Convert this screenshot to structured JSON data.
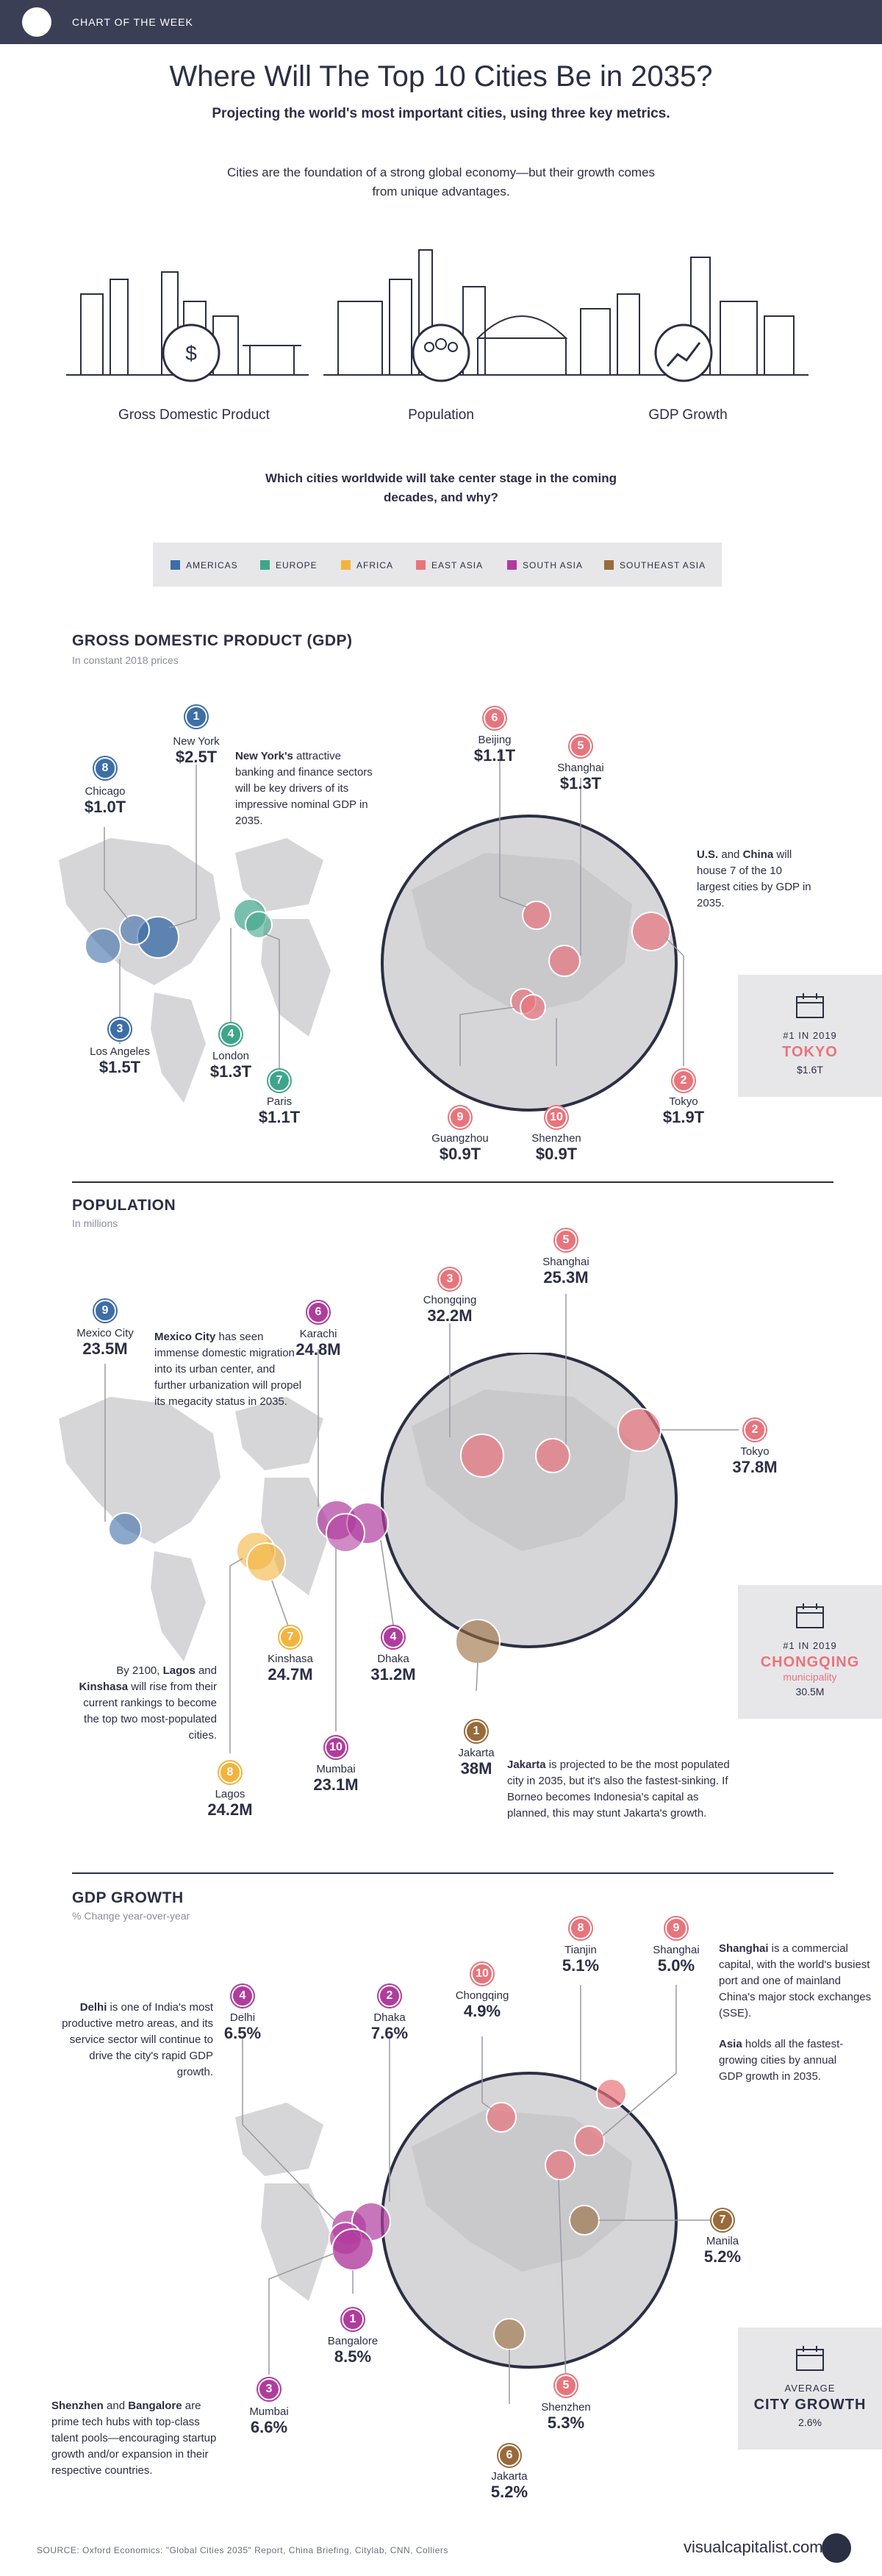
{
  "header": {
    "tag": "CHART OF THE WEEK"
  },
  "title": "Where Will The Top 10 Cities Be in 2035?",
  "subtitle": "Projecting the world's most important cities, using three key metrics.",
  "intro": "Cities are the foundation of a strong global economy—but their growth comes from unique advantages.",
  "metrics": [
    "Gross Domestic Product",
    "Population",
    "GDP Growth"
  ],
  "question": "Which cities worldwide will take center stage in the coming decades, and why?",
  "legend": [
    {
      "label": "AMERICAS",
      "color": "#3d6ea8"
    },
    {
      "label": "EUROPE",
      "color": "#3fa58a"
    },
    {
      "label": "AFRICA",
      "color": "#f3b33d"
    },
    {
      "label": "EAST ASIA",
      "color": "#e8747c"
    },
    {
      "label": "SOUTH ASIA",
      "color": "#b03c9e"
    },
    {
      "label": "SOUTHEAST ASIA",
      "color": "#9a6a3a"
    }
  ],
  "gdp": {
    "title": "GROSS DOMESTIC PRODUCT (GDP)",
    "subtitle": "In constant 2018 prices",
    "note_lead": "New York's",
    "note_rest": " attractive banking and finance sectors will be key drivers of its impressive nominal GDP in 2035.",
    "asia_note_a": "U.S.",
    "asia_note_and": " and ",
    "asia_note_b": "China",
    "asia_note_rest": " will house 7 of the 10 largest cities by GDP in 2035.",
    "box": {
      "year": "#1 IN 2019",
      "city": "TOKYO",
      "value": "$1.6T"
    },
    "cities": [
      {
        "rank": "1",
        "name": "New York",
        "value": "$2.5T",
        "region": "AMERICAS"
      },
      {
        "rank": "2",
        "name": "Tokyo",
        "value": "$1.9T",
        "region": "EAST ASIA"
      },
      {
        "rank": "3",
        "name": "Los Angeles",
        "value": "$1.5T",
        "region": "AMERICAS"
      },
      {
        "rank": "4",
        "name": "London",
        "value": "$1.3T",
        "region": "EUROPE"
      },
      {
        "rank": "5",
        "name": "Shanghai",
        "value": "$1.3T",
        "region": "EAST ASIA"
      },
      {
        "rank": "6",
        "name": "Beijing",
        "value": "$1.1T",
        "region": "EAST ASIA"
      },
      {
        "rank": "7",
        "name": "Paris",
        "value": "$1.1T",
        "region": "EUROPE"
      },
      {
        "rank": "8",
        "name": "Chicago",
        "value": "$1.0T",
        "region": "AMERICAS"
      },
      {
        "rank": "9",
        "name": "Guangzhou",
        "value": "$0.9T",
        "region": "EAST ASIA"
      },
      {
        "rank": "10",
        "name": "Shenzhen",
        "value": "$0.9T",
        "region": "EAST ASIA"
      }
    ]
  },
  "population": {
    "title": "POPULATION",
    "subtitle": "In millions",
    "note_lead": "Mexico City",
    "note_rest": " has seen immense domestic migration into its urban center, and further urbanization will propel its megacity status in 2035.",
    "africa_note_a": "By 2100, ",
    "africa_note_b": "Lagos",
    "africa_note_and": " and ",
    "africa_note_c": "Kinshasa",
    "africa_note_rest": " will rise from their current rankings to become the top two most-populated cities.",
    "jakarta_lead": "Jakarta",
    "jakarta_rest": " is projected to be the most populated city in 2035, but it's also the fastest-sinking. If Borneo becomes Indonesia's capital as planned, this may stunt Jakarta's growth.",
    "box": {
      "year": "#1 IN 2019",
      "city": "CHONGQING",
      "extra": "municipality",
      "value": "30.5M"
    },
    "cities": [
      {
        "rank": "1",
        "name": "Jakarta",
        "value": "38M",
        "region": "SOUTHEAST ASIA"
      },
      {
        "rank": "2",
        "name": "Tokyo",
        "value": "37.8M",
        "region": "EAST ASIA"
      },
      {
        "rank": "3",
        "name": "Chongqing",
        "value": "32.2M",
        "region": "EAST ASIA"
      },
      {
        "rank": "4",
        "name": "Dhaka",
        "value": "31.2M",
        "region": "SOUTH ASIA"
      },
      {
        "rank": "5",
        "name": "Shanghai",
        "value": "25.3M",
        "region": "EAST ASIA"
      },
      {
        "rank": "6",
        "name": "Karachi",
        "value": "24.8M",
        "region": "SOUTH ASIA"
      },
      {
        "rank": "7",
        "name": "Kinshasa",
        "value": "24.7M",
        "region": "AFRICA"
      },
      {
        "rank": "8",
        "name": "Lagos",
        "value": "24.2M",
        "region": "AFRICA"
      },
      {
        "rank": "9",
        "name": "Mexico City",
        "value": "23.5M",
        "region": "AMERICAS"
      },
      {
        "rank": "10",
        "name": "Mumbai",
        "value": "23.1M",
        "region": "SOUTH ASIA"
      }
    ]
  },
  "growth": {
    "title": "GDP GROWTH",
    "subtitle": "% Change year-over-year",
    "delhi_lead": "Delhi",
    "delhi_rest": " is one of India's most productive metro areas, and its service sector will continue to drive the city's rapid GDP growth.",
    "shanghai_lead": "Shanghai",
    "shanghai_rest": " is a commercial capital, with the world's busiest port and one of mainland China's major stock exchanges (SSE).",
    "asia_lead": "Asia",
    "asia_rest": " holds all the fastest-growing cities by annual GDP growth in 2035.",
    "tech_lead_a": "Shenzhen",
    "tech_and": " and ",
    "tech_lead_b": "Bangalore",
    "tech_rest": " are prime tech hubs with top-class talent pools—encouraging startup growth and/or expansion in their respective countries.",
    "box": {
      "year": "AVERAGE",
      "city": "CITY GROWTH",
      "value": "2.6%"
    },
    "cities": [
      {
        "rank": "1",
        "name": "Bangalore",
        "value": "8.5%",
        "region": "SOUTH ASIA"
      },
      {
        "rank": "2",
        "name": "Dhaka",
        "value": "7.6%",
        "region": "SOUTH ASIA"
      },
      {
        "rank": "3",
        "name": "Mumbai",
        "value": "6.6%",
        "region": "SOUTH ASIA"
      },
      {
        "rank": "4",
        "name": "Delhi",
        "value": "6.5%",
        "region": "SOUTH ASIA"
      },
      {
        "rank": "5",
        "name": "Shenzhen",
        "value": "5.3%",
        "region": "EAST ASIA"
      },
      {
        "rank": "6",
        "name": "Jakarta",
        "value": "5.2%",
        "region": "SOUTHEAST ASIA"
      },
      {
        "rank": "7",
        "name": "Manila",
        "value": "5.2%",
        "region": "SOUTHEAST ASIA"
      },
      {
        "rank": "8",
        "name": "Tianjin",
        "value": "5.1%",
        "region": "EAST ASIA"
      },
      {
        "rank": "9",
        "name": "Shanghai",
        "value": "5.0%",
        "region": "EAST ASIA"
      },
      {
        "rank": "10",
        "name": "Chongqing",
        "value": "4.9%",
        "region": "EAST ASIA"
      }
    ]
  },
  "source": "SOURCE: Oxford Economics: \"Global Cities 2035\" Report, China Briefing, Citylab, CNN, Colliers",
  "brand": "visualcapitalist.com",
  "icons": [
    "skyline-icon",
    "globe-currency-icon",
    "people-icon",
    "chart-growth-icon",
    "calendar-icon",
    "crown-icon"
  ]
}
